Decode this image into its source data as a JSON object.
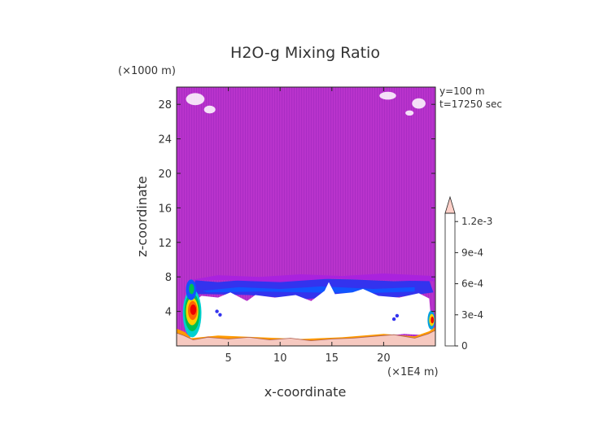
{
  "chart_data": {
    "type": "heatmap",
    "title": "H2O-g Mixing Ratio",
    "xlabel": "x-coordinate",
    "ylabel": "z-coordinate",
    "x_unit": "(×1E4 m)",
    "y_unit": "(×1000 m)",
    "annotations": [
      "y=100 m",
      "t=17250 sec"
    ],
    "x_ticks": [
      "5",
      "10",
      "15",
      "20"
    ],
    "x_tick_values": [
      5,
      10,
      15,
      20
    ],
    "y_ticks": [
      "4",
      "8",
      "12",
      "16",
      "20",
      "24",
      "28"
    ],
    "y_tick_values": [
      4,
      8,
      12,
      16,
      20,
      24,
      28
    ],
    "xlim": [
      0,
      25
    ],
    "ylim": [
      0,
      30
    ],
    "colorbar": {
      "levels": [
        0,
        0.0003,
        0.0006,
        0.0009,
        0.0012
      ],
      "tick_labels": [
        "0",
        "3e-4",
        "6e-4",
        "9e-4",
        "1.2e-3"
      ],
      "colors": [
        "#9900cc",
        "#aa22dd",
        "#6600cc",
        "#3333ee",
        "#1155ff",
        "#00a0e0",
        "#00d0d0",
        "#00c050",
        "#44dd00",
        "#ffd000",
        "#ff9900",
        "#ff6600",
        "#ff2000",
        "#ee0000",
        "#ff8080",
        "#ffd0c8"
      ],
      "extend": "max"
    },
    "background_color": "#b933cc",
    "empty_color": "#ffffff",
    "ground_color": "#f6c9c0"
  }
}
